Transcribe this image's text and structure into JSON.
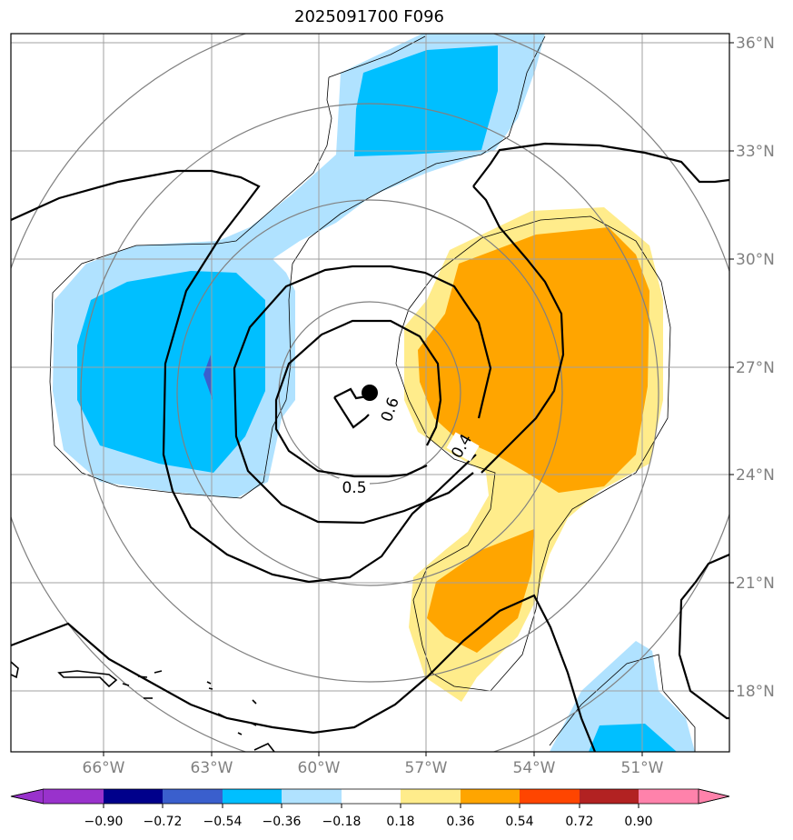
{
  "title": "2025091700 F096",
  "lon_labels": [
    "66°W",
    "63°W",
    "60°W",
    "57°W",
    "54°W",
    "51°W"
  ],
  "lat_labels": [
    "36°N",
    "33°N",
    "30°N",
    "27°N",
    "24°N",
    "21°N",
    "18°N"
  ],
  "contour_labels": [
    "0.6",
    "0.4",
    "0.5"
  ],
  "colorbar": {
    "ticks": [
      "−0.90",
      "−0.72",
      "−0.54",
      "−0.36",
      "−0.18",
      "0.18",
      "0.36",
      "0.54",
      "0.72",
      "0.90"
    ],
    "colors": [
      "#9932cc",
      "#00008b",
      "#3a5fcd",
      "#00bfff",
      "#b0e2ff",
      "#ffffff",
      "#ffec8b",
      "#ffa500",
      "#ff4500",
      "#b22222",
      "#ff82ab"
    ]
  },
  "colors": {
    "neg_light": "#b0e2ff",
    "neg_mid": "#00bfff",
    "neg_dark": "#3a5fcd",
    "pos_light": "#ffec8b",
    "pos_mid": "#ffa500",
    "grid": "#a0a0a0",
    "range_rings": "#808080"
  }
}
